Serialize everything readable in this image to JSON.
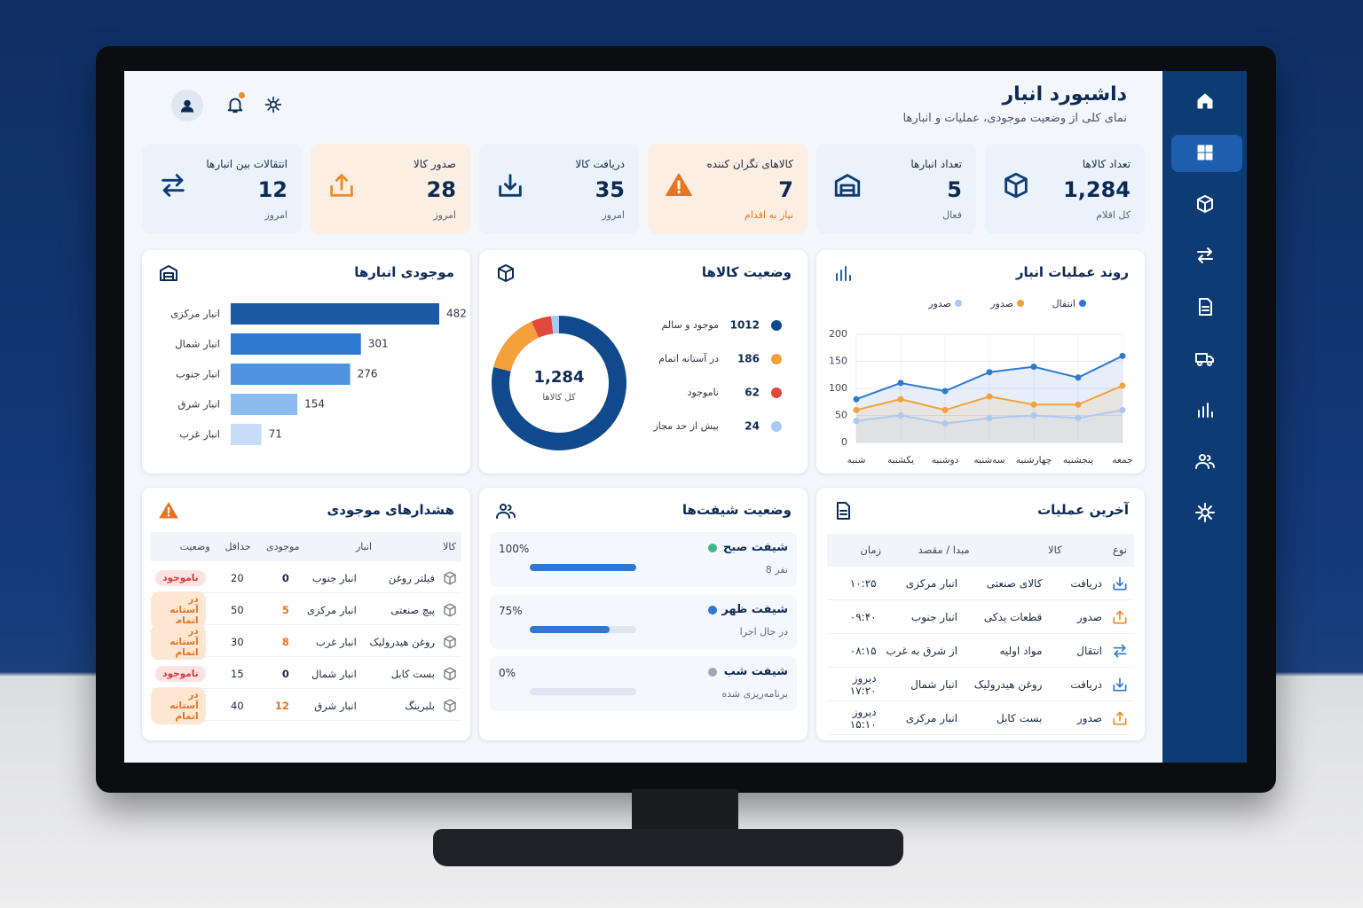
{
  "header": {
    "title": "داشبورد انبار",
    "subtitle": "نمای کلی از وضعیت موجودی، عملیات و انبارها"
  },
  "kpis": [
    {
      "label": "تعداد کالاها",
      "value": "1,284",
      "note": "کل اقلام",
      "color": "#eaf2fb"
    },
    {
      "label": "تعداد انبارها",
      "value": "5",
      "note": "فعال",
      "color": "#eaf2fb"
    },
    {
      "label": "کالاهای نگران کننده",
      "value": "7",
      "note": "نیاز به اقدام",
      "color": "#fdeee3"
    },
    {
      "label": "دریافت کالا",
      "value": "35",
      "note": "امروز",
      "color": "#eaf2fb"
    },
    {
      "label": "صدور کالا",
      "value": "28",
      "note": "امروز",
      "color": "#fdeee3"
    },
    {
      "label": "انتقالات بین انبارها",
      "value": "12",
      "note": "امروز",
      "color": "#eaf2fb"
    }
  ],
  "inventory_chart": {
    "type": "bar",
    "title": "موجودی انبارها",
    "categories": [
      "انبار مرکزی",
      "انبار شمال",
      "انبار جنوب",
      "انبار شرق",
      "انبار غرب"
    ],
    "values": [
      482,
      301,
      276,
      154,
      71
    ],
    "colors": [
      "#1c5aa6",
      "#2f78d0",
      "#4f93e0",
      "#8cbcef",
      "#c6ddf7"
    ]
  },
  "status_chart": {
    "type": "pie",
    "title": "وضعیت کالاها",
    "center_value": "1,284",
    "center_label": "کل کالاها",
    "categories": [
      "موجود و سالم",
      "در آستانه اتمام",
      "ناموجود",
      "بیش از حد مجاز"
    ],
    "values": [
      1012,
      186,
      62,
      24
    ],
    "colors": [
      "#114a8c",
      "#f5a03c",
      "#e2483a",
      "#a9c9f0"
    ]
  },
  "trend_chart": {
    "type": "line",
    "title": "روند عملیات انبار",
    "categories": [
      "شنبه",
      "یکشنبه",
      "دوشنبه",
      "سه‌شنبه",
      "چهارشنبه",
      "پنجشنبه",
      "جمعه"
    ],
    "series": [
      {
        "name": "انتقال",
        "color": "#2f78d0",
        "values": [
          80,
          110,
          95,
          130,
          140,
          120,
          160
        ]
      },
      {
        "name": "صدور",
        "color": "#f5a03c",
        "values": [
          60,
          80,
          60,
          85,
          70,
          70,
          105
        ]
      },
      {
        "name": "صدور",
        "color": "#a9c9f0",
        "values": [
          40,
          50,
          35,
          45,
          50,
          45,
          60
        ]
      }
    ],
    "ylim": [
      0,
      200
    ],
    "yticks": [
      0,
      50,
      100,
      150,
      200
    ],
    "grid": true
  },
  "alerts": {
    "title": "هشدارهای موجودی",
    "columns": [
      "کالا",
      "انبار",
      "موجودی",
      "حداقل",
      "وضعیت"
    ],
    "rows": [
      {
        "item": "فیلتر روغن",
        "warehouse": "انبار جنوب",
        "stock": "0",
        "min": "20",
        "status": "ناموجود",
        "color": "#d9363e",
        "bg": "#fde2e2"
      },
      {
        "item": "پیچ صنعتی",
        "warehouse": "انبار مرکزی",
        "stock": "5",
        "min": "50",
        "status": "در آستانه اتمام",
        "color": "#e8741f",
        "bg": "#fde7d3"
      },
      {
        "item": "روغن هیدرولیک",
        "warehouse": "انبار غرب",
        "stock": "8",
        "min": "30",
        "status": "در آستانه اتمام",
        "color": "#e8741f",
        "bg": "#fde7d3"
      },
      {
        "item": "بست کابل",
        "warehouse": "انبار شمال",
        "stock": "0",
        "min": "15",
        "status": "ناموجود",
        "color": "#d9363e",
        "bg": "#fde2e2"
      },
      {
        "item": "بلبرینگ",
        "warehouse": "انبار شرق",
        "stock": "12",
        "min": "40",
        "status": "در آستانه اتمام",
        "color": "#e8741f",
        "bg": "#fde7d3"
      }
    ]
  },
  "shifts": {
    "title": "وضعیت شیفت‌ها",
    "items": [
      {
        "name": "شیفت صبح",
        "detail": "8 نفر",
        "percent": 100,
        "percent_label": "100%",
        "color": "#3cb98a"
      },
      {
        "name": "شیفت ظهر",
        "detail": "در حال اجرا",
        "percent": 75,
        "percent_label": "75%",
        "color": "#2f78d0"
      },
      {
        "name": "شیفت شب",
        "detail": "برنامه‌ریزی شده",
        "percent": 0,
        "percent_label": "0%",
        "color": "#a0a7b2"
      }
    ]
  },
  "operations": {
    "title": "آخرین عملیات",
    "columns": [
      "نوع",
      "کالا",
      "مبدا / مقصد",
      "زمان"
    ],
    "rows": [
      {
        "type": "دریافت",
        "item": "کالای صنعتی",
        "place": "انبار مرکزی",
        "time": "۱۰:۲۵",
        "color": "#2f78d0"
      },
      {
        "type": "صدور",
        "item": "قطعات یدکی",
        "place": "انبار جنوب",
        "time": "۰۹:۴۰",
        "color": "#f08a24"
      },
      {
        "type": "انتقال",
        "item": "مواد اولیه",
        "place": "از شرق به غرب",
        "time": "۰۸:۱۵",
        "color": "#2f78d0"
      },
      {
        "type": "دریافت",
        "item": "روغن هیدرولیک",
        "place": "انبار شمال",
        "time": "دیروز ۱۷:۲۰",
        "color": "#2f78d0"
      },
      {
        "type": "صدور",
        "item": "بست کابل",
        "place": "انبار مرکزی",
        "time": "دیروز ۱۵:۱۰",
        "color": "#f08a24"
      }
    ]
  }
}
